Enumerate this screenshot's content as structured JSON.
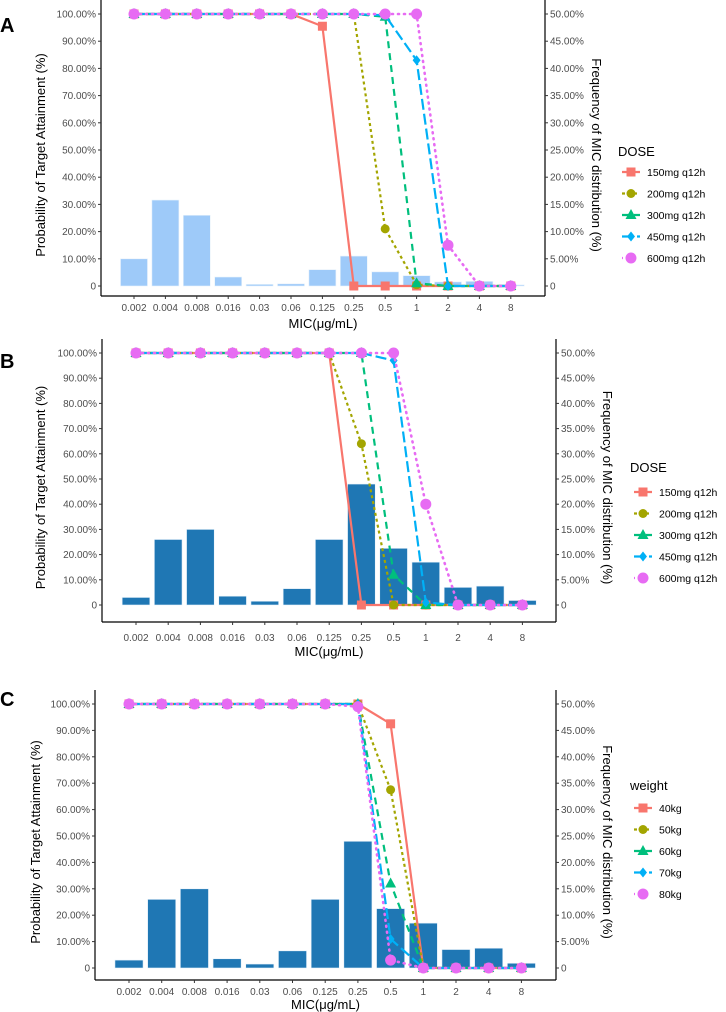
{
  "chart_data": [
    {
      "panel_label": "A",
      "type": "bar+line",
      "xlabel": "MIC(μg/mL)",
      "ylabel": "Probability of Target Attainment (%)",
      "y2label": "Frequency of MIC distribution (%)",
      "categories": [
        "0.002",
        "0.004",
        "0.008",
        "0.016",
        "0.03",
        "0.06",
        "0.125",
        "0.25",
        "0.5",
        "1",
        "2",
        "4",
        "8"
      ],
      "ylim": [
        0,
        100
      ],
      "y2lim": [
        0,
        50
      ],
      "yticks": [
        "0",
        "10.00%",
        "20.00%",
        "30.00%",
        "40.00%",
        "50.00%",
        "60.00%",
        "70.00%",
        "80.00%",
        "90.00%",
        "100.00%"
      ],
      "y2ticks": [
        "0",
        "5.00%",
        "10.00%",
        "15.00%",
        "20.00%",
        "25.00%",
        "30.00%",
        "35.00%",
        "40.00%",
        "45.00%",
        "50.00%"
      ],
      "bar_color": "#9ECAF9",
      "bar_values": [
        5.0,
        15.8,
        13.0,
        1.65,
        0.3,
        0.4,
        3.0,
        5.5,
        2.6,
        1.9,
        0.75,
        0.85,
        0.2
      ],
      "legend_title": "DOSE",
      "legend_position": "right",
      "series": [
        {
          "name": "150mg q12h",
          "color": "#F8766D",
          "marker": "square",
          "dash": "solid",
          "values": [
            100,
            100,
            100,
            100,
            100,
            100,
            95.5,
            0,
            0,
            0,
            0,
            0,
            0
          ]
        },
        {
          "name": "200mg q12h",
          "color": "#A3A500",
          "marker": "circle",
          "dash": "dotted",
          "values": [
            100,
            100,
            100,
            100,
            100,
            100,
            100,
            100,
            21,
            0.5,
            0,
            0,
            0
          ]
        },
        {
          "name": "300mg q12h",
          "color": "#00BF7D",
          "marker": "triangle",
          "dash": "dashed",
          "values": [
            100,
            100,
            100,
            100,
            100,
            100,
            100,
            100,
            99,
            1,
            0,
            0,
            0
          ]
        },
        {
          "name": "450mg q12h",
          "color": "#00B0F6",
          "marker": "diamond",
          "dash": "longdash",
          "values": [
            100,
            100,
            100,
            100,
            100,
            100,
            100,
            100,
            99.5,
            83,
            0,
            0,
            0
          ]
        },
        {
          "name": "600mg q12h",
          "color": "#E76BF3",
          "marker": "bigcircle",
          "dash": "dot",
          "values": [
            100,
            100,
            100,
            100,
            100,
            100,
            100,
            100,
            100,
            100,
            15,
            0,
            0
          ]
        }
      ]
    },
    {
      "panel_label": "B",
      "type": "bar+line",
      "xlabel": "MIC(μg/mL)",
      "ylabel": "Probability of Target Attainment (%)",
      "y2label": "Frequency of MIC distribution (%)",
      "categories": [
        "0.002",
        "0.004",
        "0.008",
        "0.016",
        "0.03",
        "0.06",
        "0.125",
        "0.25",
        "0.5",
        "1",
        "2",
        "4",
        "8"
      ],
      "ylim": [
        0,
        100
      ],
      "y2lim": [
        0,
        50
      ],
      "yticks": [
        "0",
        "10.00%",
        "20.00%",
        "30.00%",
        "40.00%",
        "50.00%",
        "60.00%",
        "70.00%",
        "80.00%",
        "90.00%",
        "100.00%"
      ],
      "y2ticks": [
        "0",
        "5.00%",
        "10.00%",
        "15.00%",
        "20.00%",
        "25.00%",
        "30.00%",
        "35.00%",
        "40.00%",
        "45.00%",
        "50.00%"
      ],
      "bar_color": "#1F77B4",
      "bar_values": [
        1.5,
        13.0,
        15.0,
        1.75,
        0.75,
        3.25,
        13.0,
        24.0,
        11.25,
        8.5,
        3.5,
        3.75,
        0.9
      ],
      "legend_title": "DOSE",
      "legend_position": "right",
      "series": [
        {
          "name": "150mg q12h",
          "color": "#F8766D",
          "marker": "square",
          "dash": "solid",
          "values": [
            100,
            100,
            100,
            100,
            100,
            100,
            100,
            0,
            0,
            0,
            0,
            0,
            0
          ]
        },
        {
          "name": "200mg q12h",
          "color": "#A3A500",
          "marker": "circle",
          "dash": "dotted",
          "values": [
            100,
            100,
            100,
            100,
            100,
            100,
            100,
            64,
            0,
            0,
            0,
            0,
            0
          ]
        },
        {
          "name": "300mg q12h",
          "color": "#00BF7D",
          "marker": "triangle",
          "dash": "dashed",
          "values": [
            100,
            100,
            100,
            100,
            100,
            100,
            100,
            100,
            12,
            0,
            0,
            0,
            0
          ]
        },
        {
          "name": "450mg q12h",
          "color": "#00B0F6",
          "marker": "diamond",
          "dash": "longdash",
          "values": [
            100,
            100,
            100,
            100,
            100,
            100,
            100,
            100,
            97,
            1,
            0,
            0,
            0
          ]
        },
        {
          "name": "600mg q12h",
          "color": "#E76BF3",
          "marker": "bigcircle",
          "dash": "dot",
          "values": [
            100,
            100,
            100,
            100,
            100,
            100,
            100,
            100,
            100,
            40,
            0,
            0,
            0
          ]
        }
      ]
    },
    {
      "panel_label": "C",
      "type": "bar+line",
      "xlabel": "MIC(μg/mL)",
      "ylabel": "Probability of Target Attainment (%)",
      "y2label": "Frequency of MIC distribution (%)",
      "categories": [
        "0.002",
        "0.004",
        "0.008",
        "0.016",
        "0.03",
        "0.06",
        "0.125",
        "0.25",
        "0.5",
        "1",
        "2",
        "4",
        "8"
      ],
      "ylim": [
        0,
        100
      ],
      "y2lim": [
        0,
        50
      ],
      "yticks": [
        "0",
        "10.00%",
        "20.00%",
        "30.00%",
        "40.00%",
        "50.00%",
        "60.00%",
        "70.00%",
        "80.00%",
        "90.00%",
        "100.00%"
      ],
      "y2ticks": [
        "0",
        "5.00%",
        "10.00%",
        "15.00%",
        "20.00%",
        "25.00%",
        "30.00%",
        "35.00%",
        "40.00%",
        "45.00%",
        "50.00%"
      ],
      "bar_color": "#1F77B4",
      "bar_values": [
        1.5,
        13.0,
        15.0,
        1.75,
        0.75,
        3.25,
        13.0,
        24.0,
        11.25,
        8.5,
        3.5,
        3.75,
        0.9
      ],
      "legend_title": "weight",
      "legend_position": "right",
      "series": [
        {
          "name": "40kg",
          "color": "#F8766D",
          "marker": "square",
          "dash": "solid",
          "values": [
            100,
            100,
            100,
            100,
            100,
            100,
            100,
            100,
            92.5,
            0,
            0,
            0,
            0
          ]
        },
        {
          "name": "50kg",
          "color": "#A3A500",
          "marker": "circle",
          "dash": "dotted",
          "values": [
            100,
            100,
            100,
            100,
            100,
            100,
            100,
            100,
            67.5,
            0,
            0,
            0,
            0
          ]
        },
        {
          "name": "60kg",
          "color": "#00BF7D",
          "marker": "triangle",
          "dash": "dashed",
          "values": [
            100,
            100,
            100,
            100,
            100,
            100,
            100,
            100,
            32,
            0,
            0,
            0,
            0
          ]
        },
        {
          "name": "70kg",
          "color": "#00B0F6",
          "marker": "diamond",
          "dash": "longdash",
          "values": [
            100,
            100,
            100,
            100,
            100,
            100,
            100,
            100,
            11,
            0,
            0,
            0,
            0
          ]
        },
        {
          "name": "80kg",
          "color": "#E76BF3",
          "marker": "bigcircle",
          "dash": "dot",
          "values": [
            100,
            100,
            100,
            100,
            100,
            100,
            100,
            99,
            3,
            0,
            0,
            0,
            0
          ]
        }
      ]
    }
  ]
}
